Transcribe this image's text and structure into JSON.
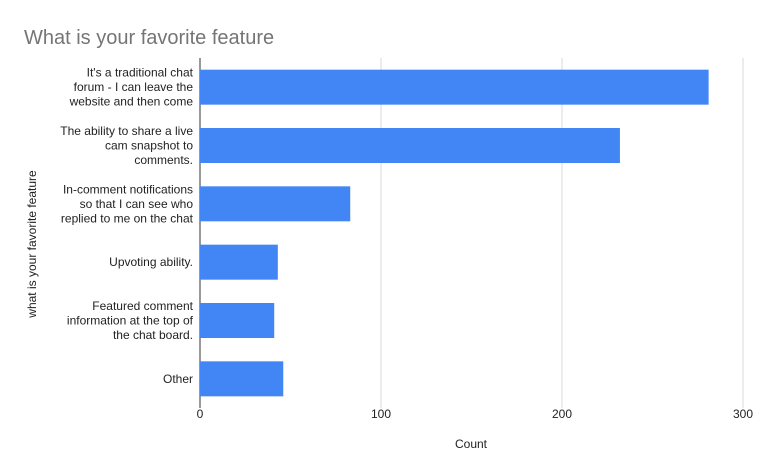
{
  "chart_data": {
    "type": "bar",
    "orientation": "horizontal",
    "title": "What is your favorite feature",
    "xlabel": "Count",
    "ylabel": "what is your favorite feature",
    "categories": [
      [
        "It's a traditional chat",
        "forum - I can leave the",
        "website and then come"
      ],
      [
        "The ability to share a live",
        "cam snapshot to",
        "comments."
      ],
      [
        "In-comment notifications",
        "so that I can see who",
        "replied to me on the chat"
      ],
      [
        "Upvoting ability."
      ],
      [
        "Featured comment",
        "information at the top of",
        "the chat board."
      ],
      [
        "Other"
      ]
    ],
    "values": [
      281,
      232,
      83,
      43,
      41,
      46
    ],
    "xlim": [
      0,
      300
    ],
    "xticks": [
      0,
      100,
      200,
      300
    ],
    "grid": true,
    "legend": "none",
    "colors": {
      "bar": "#4285f4"
    }
  }
}
